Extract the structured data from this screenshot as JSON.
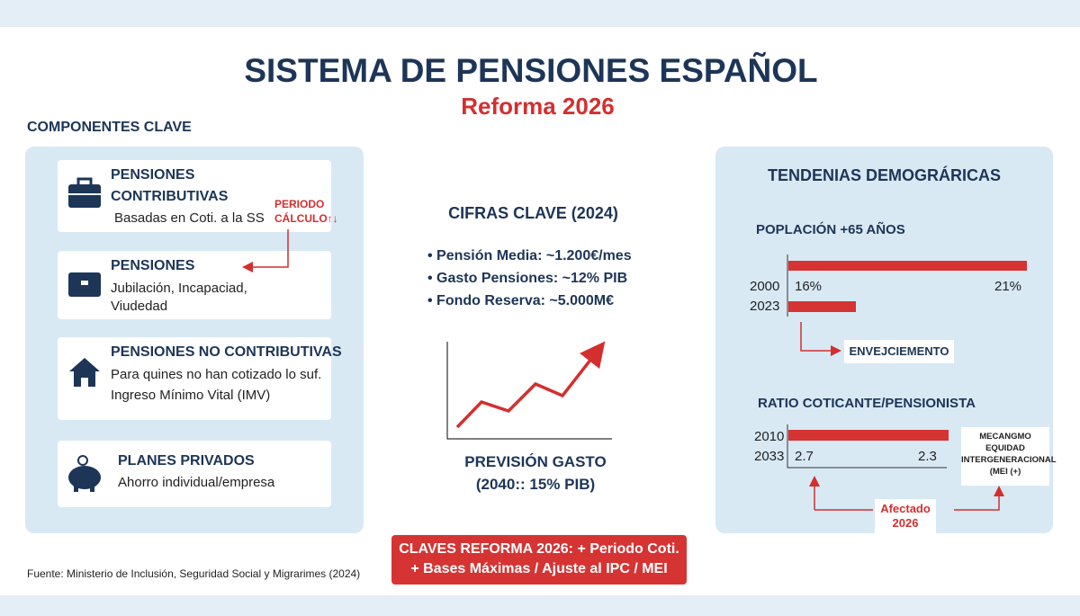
{
  "header": {
    "title": "SISTEMA DE PENSIONES ESPAÑOL",
    "subtitle": "Reforma 2026"
  },
  "components": {
    "heading": "COMPONENTES CLAVE",
    "items": [
      {
        "title": [
          "PENSIONES",
          "CONTRIBUTIVAS"
        ],
        "description": [
          "Basadas en Coti. a la SS"
        ]
      },
      {
        "title": [
          "PENSIONES"
        ],
        "description": [
          "Jubilación, Incapaciad,",
          "Viudedad"
        ]
      },
      {
        "title": [
          "PENSIONES NO CONTRIBUTIVAS"
        ],
        "description": [
          "Para quines no han cotizado lo suf.",
          "Ingreso Mínimo Vital (IMV)"
        ]
      },
      {
        "title": [
          "PLANES PRIVADOS"
        ],
        "description": [
          "Ahorro individual/empresa"
        ]
      }
    ],
    "note": [
      "PERIODO",
      "CÁLCULO↑↓"
    ]
  },
  "key_figures": {
    "heading": "CIFRAS CLAVE (2024)",
    "bullets": [
      "Pensión Media: ~1.200€/mes",
      "Gasto Pensiones: ~12% PIB",
      "Fondo Reserva: ~5.000M€"
    ],
    "forecast": [
      "PREVISIÓN GASTO",
      "(2040:: 15% PIB)"
    ]
  },
  "demographics": {
    "heading": "TENDENIAS DEMOGRÁRICAS",
    "population": {
      "label": "POPLACIÓN +65 AÑOS",
      "years": [
        "2000",
        "2023"
      ],
      "values": [
        "16%",
        "21%"
      ],
      "note": "ENVEJCIEMENTO"
    },
    "ratio": {
      "label": "RATIO COTICANTE/PENSIONISTA",
      "years": [
        "2010",
        "2033"
      ],
      "values": [
        "2.7",
        "2.3"
      ],
      "note": [
        "MECANGMO",
        "EQUIDAD",
        "INTERGENERACIONAL",
        "(MEI (+)"
      ],
      "affected": [
        "Afectado",
        "2026"
      ]
    }
  },
  "reform": [
    "CLAVES REFORMA 2026: + Periodo Coti.",
    "+ Bases Máximas / Ajuste al IPC / MEI"
  ],
  "source": "Fuente: Ministerio de Inclusión, Seguridad Social y Migrarimes (2024)"
}
